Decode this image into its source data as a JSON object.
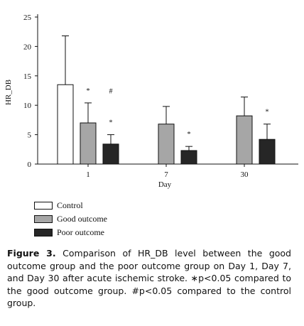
{
  "chart_data": {
    "type": "bar",
    "xlabel": "Day",
    "ylabel": "HR_DB",
    "ylim": [
      0,
      25
    ],
    "yticks": [
      0,
      5,
      10,
      15,
      20,
      25
    ],
    "categories": [
      "1",
      "7",
      "30"
    ],
    "series": [
      {
        "name": "Control",
        "values": [
          13.5,
          null,
          null
        ],
        "errors": [
          8.3,
          null,
          null
        ],
        "color": "#ffffff"
      },
      {
        "name": "Good outcome",
        "values": [
          7.0,
          6.8,
          8.2
        ],
        "errors": [
          3.4,
          3.0,
          3.2
        ],
        "color": "#a6a6a6"
      },
      {
        "name": "Poor outcome",
        "values": [
          3.4,
          2.3,
          4.2
        ],
        "errors": [
          1.6,
          0.7,
          2.6
        ],
        "color": "#262626"
      }
    ],
    "annotations": [
      {
        "category": "1",
        "series": "Good outcome",
        "text": "*"
      },
      {
        "category": "1",
        "series": "Poor outcome",
        "text": "#"
      },
      {
        "category": "1",
        "series": "Poor outcome",
        "text": "*"
      },
      {
        "category": "7",
        "series": "Poor outcome",
        "text": "*"
      },
      {
        "category": "30",
        "series": "Poor outcome",
        "text": "*"
      }
    ]
  },
  "caption": {
    "label": "Figure 3.",
    "text": "Comparison of HR_DB level between the good outcome group and the poor outcome group on Day 1, Day 7, and Day 30 after acute ischemic stroke. ∗p<0.05 compared to the good outcome group. #p<0.05 compared to the control group."
  }
}
